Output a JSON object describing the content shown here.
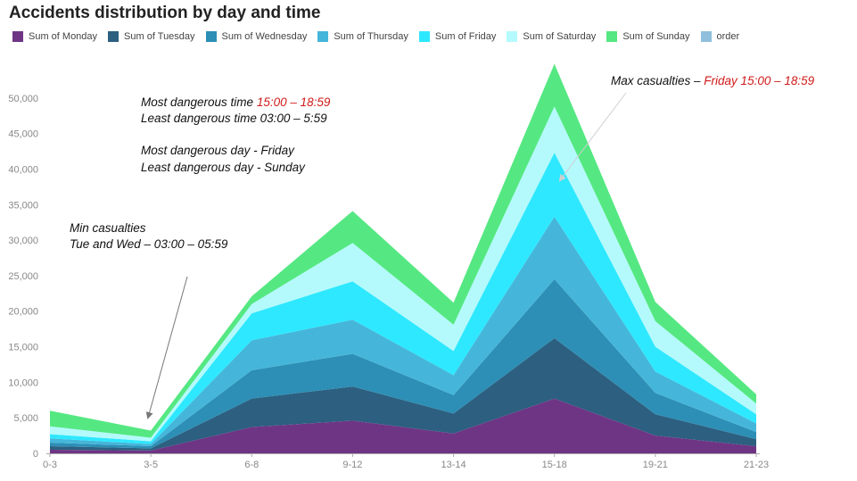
{
  "chart_data": {
    "type": "area",
    "stacked": true,
    "title": "Accidents distribution by day and time",
    "categories": [
      "0-3",
      "3-5",
      "6-8",
      "9-12",
      "13-14",
      "15-18",
      "19-21",
      "21-23"
    ],
    "ylim": [
      0,
      55000
    ],
    "yticks": [
      0,
      5000,
      10000,
      15000,
      20000,
      25000,
      30000,
      35000,
      40000,
      45000,
      50000
    ],
    "ytick_labels": [
      "0",
      "5,000",
      "10,000",
      "15,000",
      "20,000",
      "25,000",
      "30,000",
      "35,000",
      "40,000",
      "45,000",
      "50,000"
    ],
    "grid": false,
    "legend_position": "top",
    "series": [
      {
        "name": "Sum of Monday",
        "color": "#6f3585",
        "values": [
          500,
          400,
          3700,
          4600,
          2800,
          7700,
          2500,
          1000
        ]
      },
      {
        "name": "Sum of Tuesday",
        "color": "#2c5f80",
        "values": [
          500,
          300,
          4000,
          4800,
          2800,
          8500,
          3000,
          1000
        ]
      },
      {
        "name": "Sum of Wednesday",
        "color": "#2d8fb5",
        "values": [
          500,
          300,
          4000,
          4600,
          2600,
          8300,
          3000,
          1000
        ]
      },
      {
        "name": "Sum of Thursday",
        "color": "#45b6d9",
        "values": [
          600,
          300,
          4200,
          4800,
          2800,
          8800,
          3000,
          1200
        ]
      },
      {
        "name": "Sum of Friday",
        "color": "#2ee8ff",
        "values": [
          600,
          400,
          3800,
          5400,
          3400,
          9000,
          3500,
          1300
        ]
      },
      {
        "name": "Sum of Saturday",
        "color": "#b4fafd",
        "values": [
          1100,
          500,
          1300,
          5400,
          3700,
          6500,
          3600,
          1500
        ]
      },
      {
        "name": "Sum of Sunday",
        "color": "#55e882",
        "values": [
          2200,
          1000,
          1100,
          4500,
          3100,
          6000,
          2700,
          1300
        ]
      },
      {
        "name": "order",
        "color": "#8fbfdc",
        "values": [
          0,
          0,
          0,
          0,
          0,
          0,
          0,
          0
        ]
      }
    ],
    "annotations": {
      "danger_time_prefix": "Most dangerous time ",
      "danger_time_value": "15:00 – 18:59",
      "least_time": "Least dangerous time 03:00 – 5:59",
      "danger_day": "Most dangerous day - Friday",
      "least_day": "Least dangerous day - Sunday",
      "min_title": "Min  casualties",
      "min_detail": "Tue and Wed – 03:00 – 05:59",
      "max_prefix": "Max casualties – ",
      "max_value": "Friday 15:00 – 18:59"
    }
  }
}
